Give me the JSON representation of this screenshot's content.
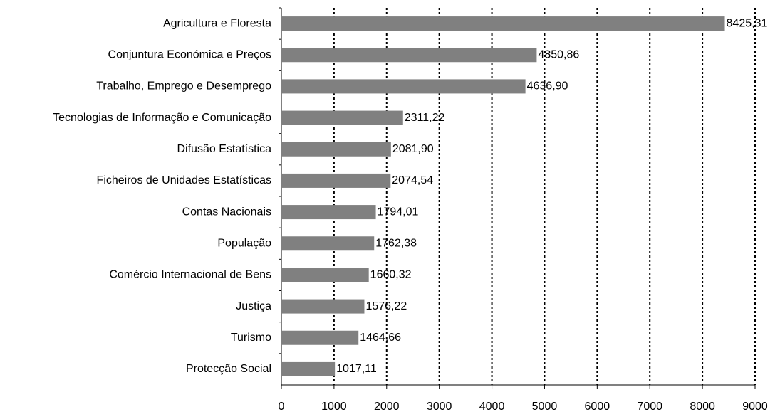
{
  "chart_data": {
    "type": "bar",
    "orientation": "horizontal",
    "categories": [
      "Agricultura e Floresta",
      "Conjuntura Económica e Preços",
      "Trabalho, Emprego e Desemprego",
      "Tecnologias de Informação e Comunicação",
      "Difusão Estatística",
      "Ficheiros de Unidades Estatísticas",
      "Contas Nacionais",
      "População",
      "Comércio Internacional de Bens",
      "Justiça",
      "Turismo",
      "Protecção Social"
    ],
    "values": [
      8425.31,
      4850.86,
      4636.9,
      2311.22,
      2081.9,
      2074.54,
      1794.01,
      1762.38,
      1660.32,
      1576.22,
      1464.66,
      1017.11
    ],
    "value_labels": [
      "8425,31",
      "4850,86",
      "4636,90",
      "2311,22",
      "2081,90",
      "2074,54",
      "1794,01",
      "1762,38",
      "1660,32",
      "1576,22",
      "1464,66",
      "1017,11"
    ],
    "color": "#808080",
    "xlim": [
      0,
      9000
    ],
    "xticks": [
      0,
      1000,
      2000,
      3000,
      4000,
      5000,
      6000,
      7000,
      8000,
      9000
    ],
    "grid": true
  }
}
